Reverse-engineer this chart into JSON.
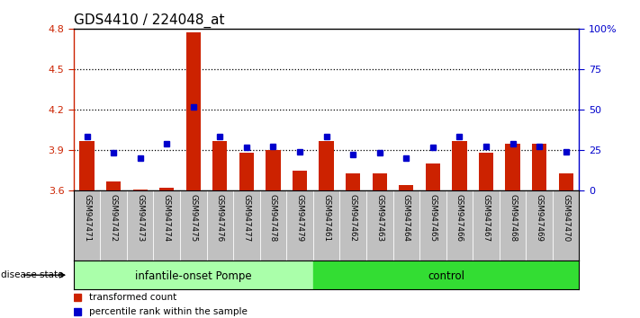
{
  "title": "GDS4410 / 224048_at",
  "samples": [
    "GSM947471",
    "GSM947472",
    "GSM947473",
    "GSM947474",
    "GSM947475",
    "GSM947476",
    "GSM947477",
    "GSM947478",
    "GSM947479",
    "GSM947461",
    "GSM947462",
    "GSM947463",
    "GSM947464",
    "GSM947465",
    "GSM947466",
    "GSM947467",
    "GSM947468",
    "GSM947469",
    "GSM947470"
  ],
  "red_values": [
    3.97,
    3.67,
    3.61,
    3.62,
    4.77,
    3.97,
    3.88,
    3.9,
    3.75,
    3.97,
    3.73,
    3.73,
    3.64,
    3.8,
    3.97,
    3.88,
    3.95,
    3.95,
    3.73
  ],
  "blue_values": [
    4.0,
    3.88,
    3.84,
    3.95,
    4.22,
    4.0,
    3.92,
    3.93,
    3.89,
    4.0,
    3.87,
    3.88,
    3.84,
    3.92,
    4.0,
    3.93,
    3.95,
    3.93,
    3.89
  ],
  "ylim": [
    3.6,
    4.8
  ],
  "yticks_left": [
    3.6,
    3.9,
    4.2,
    4.5,
    4.8
  ],
  "yticks_right": [
    0,
    25,
    50,
    75,
    100
  ],
  "dotted_lines": [
    3.9,
    4.2,
    4.5
  ],
  "bar_color": "#cc2200",
  "dot_color": "#0000cc",
  "bg_color": "#ffffff",
  "tick_bg_color": "#c0c0c0",
  "group1_label": "infantile-onset Pompe",
  "group2_label": "control",
  "group1_color": "#aaffaa",
  "group2_color": "#33dd33",
  "group1_count": 9,
  "group2_count": 10,
  "disease_state_label": "disease state",
  "legend_red": "transformed count",
  "legend_blue": "percentile rank within the sample",
  "base_value": 3.6
}
